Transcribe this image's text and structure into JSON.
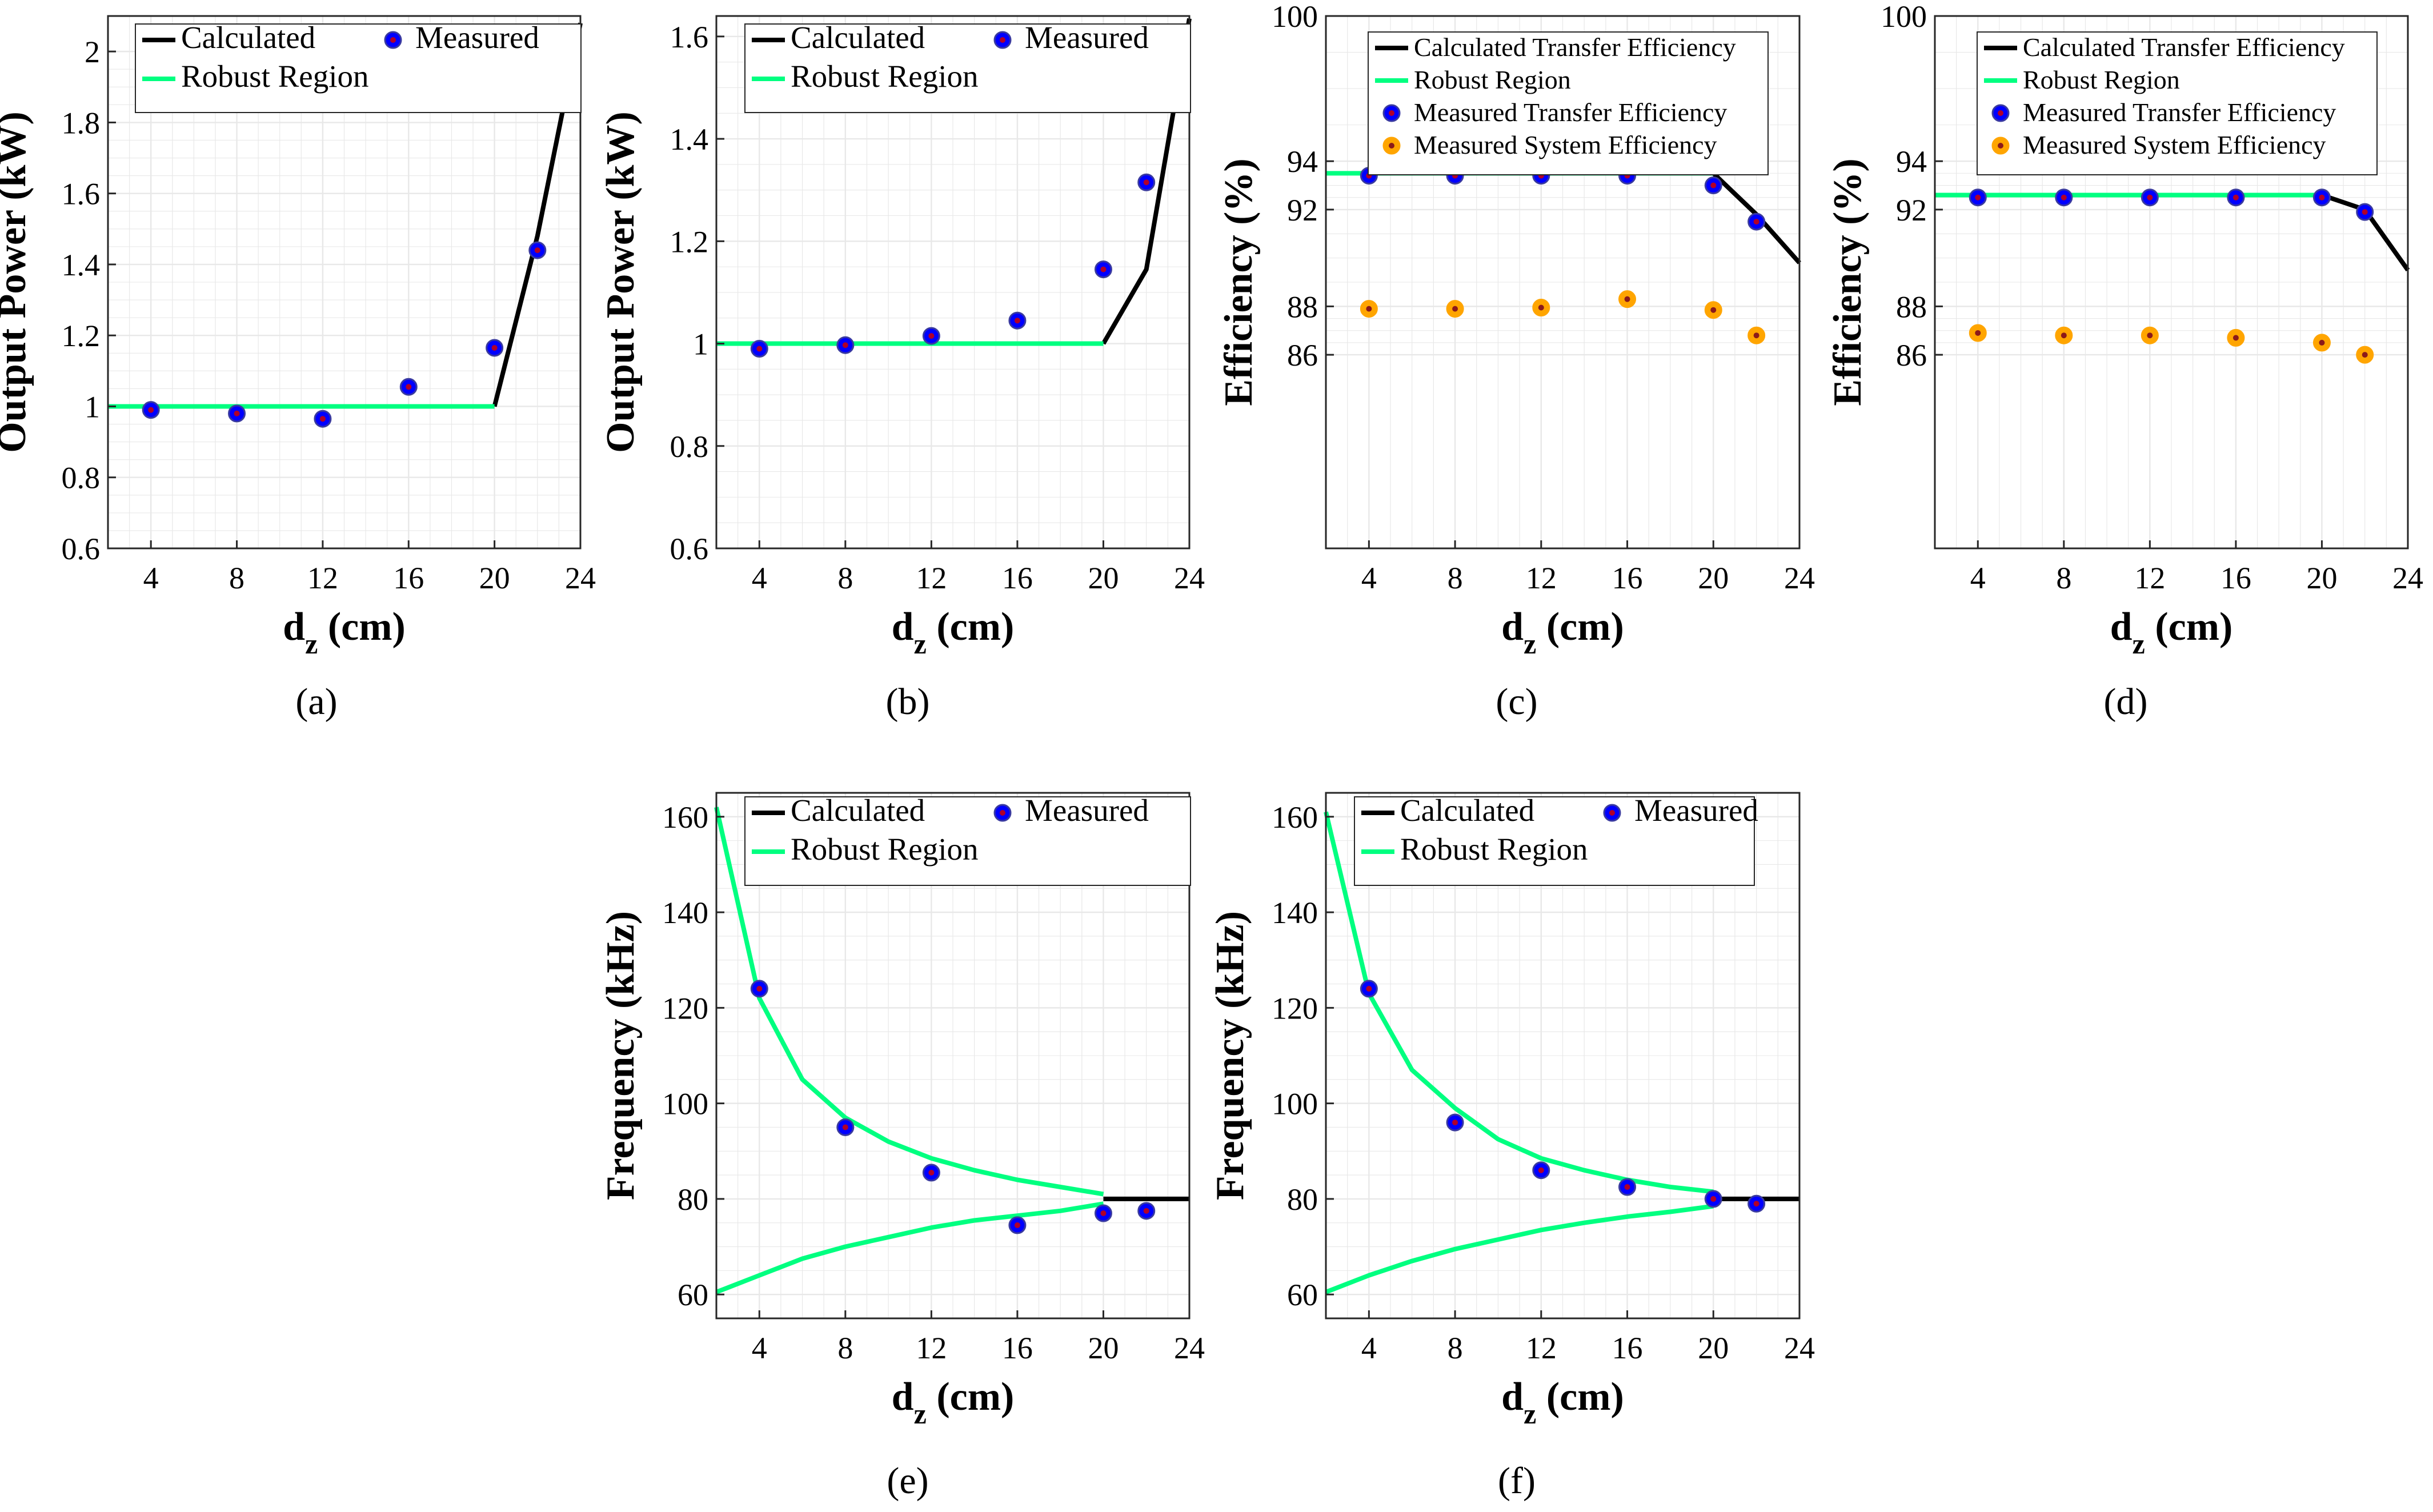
{
  "colors": {
    "calculated": "#000000",
    "robust": "#00ff80",
    "measured_face": "#0000ff",
    "measured_center": "#b0002a",
    "system_face": "#ffa500",
    "system_center": "#8b1a1a",
    "grid": "#e8e8e8",
    "axis": "#262626"
  },
  "chart_data": [
    {
      "id": "a",
      "caption": "(a)",
      "type": "line",
      "xlabel_main": "d",
      "xlabel_sub": "z",
      "xlabel_unit": " (cm)",
      "ylabel": "Output Power (kW)",
      "xlim": [
        2,
        24
      ],
      "ylim": [
        0.6,
        2.1
      ],
      "xticks": [
        4,
        8,
        12,
        16,
        20,
        24
      ],
      "xtick_labels": [
        "4",
        "8",
        "12",
        "16",
        "20",
        "24"
      ],
      "yticks": [
        0.6,
        0.8,
        1,
        1.2,
        1.4,
        1.6,
        1.8,
        2
      ],
      "ytick_labels": [
        "0.6",
        "0.8",
        "1",
        "1.2",
        "1.4",
        "1.6",
        "1.8",
        "2"
      ],
      "grid": true,
      "legend_columns": 2,
      "legend_placement": "top",
      "series": [
        {
          "name": "Calculated",
          "kind": "line",
          "color_key": "calculated",
          "x": [
            20,
            22,
            24
          ],
          "y": [
            1.0,
            1.48,
            2.08
          ]
        },
        {
          "name": "Measured",
          "kind": "marker",
          "color_key": "measured_face",
          "x": [
            4,
            8,
            12,
            16,
            20,
            22
          ],
          "y": [
            0.99,
            0.98,
            0.965,
            1.055,
            1.165,
            1.44
          ]
        },
        {
          "name": "Robust Region",
          "kind": "line",
          "color_key": "robust",
          "x": [
            2,
            20
          ],
          "y": [
            1.0,
            1.0
          ]
        }
      ]
    },
    {
      "id": "b",
      "caption": "(b)",
      "type": "line",
      "xlabel_main": "d",
      "xlabel_sub": "z",
      "xlabel_unit": " (cm)",
      "ylabel": "Output Power (kW)",
      "xlim": [
        2,
        24
      ],
      "ylim": [
        0.6,
        1.64
      ],
      "xticks": [
        4,
        8,
        12,
        16,
        20,
        24
      ],
      "xtick_labels": [
        "4",
        "8",
        "12",
        "16",
        "20",
        "24"
      ],
      "yticks": [
        0.6,
        0.8,
        1,
        1.2,
        1.4,
        1.6
      ],
      "ytick_labels": [
        "0.6",
        "0.8",
        "1",
        "1.2",
        "1.4",
        "1.6"
      ],
      "grid": true,
      "legend_columns": 2,
      "legend_placement": "top",
      "series": [
        {
          "name": "Calculated",
          "kind": "line",
          "color_key": "calculated",
          "x": [
            20,
            22,
            24
          ],
          "y": [
            1.0,
            1.145,
            1.635
          ]
        },
        {
          "name": "Measured",
          "kind": "marker",
          "color_key": "measured_face",
          "x": [
            4,
            8,
            12,
            16,
            20,
            22
          ],
          "y": [
            0.99,
            0.997,
            1.015,
            1.045,
            1.145,
            1.315
          ]
        },
        {
          "name": "Robust Region",
          "kind": "line",
          "color_key": "robust",
          "x": [
            2,
            20
          ],
          "y": [
            1.0,
            1.0
          ]
        }
      ]
    },
    {
      "id": "c",
      "caption": "(c)",
      "type": "line",
      "xlabel_main": "d",
      "xlabel_sub": "z",
      "xlabel_unit": " (cm)",
      "ylabel": "Efficiency (%)",
      "xlim": [
        2,
        24
      ],
      "ylim": [
        78,
        100
      ],
      "xticks": [
        4,
        8,
        12,
        16,
        20,
        24
      ],
      "xtick_labels": [
        "4",
        "8",
        "12",
        "16",
        "20",
        "24"
      ],
      "yticks": [
        86,
        88,
        92,
        94,
        100
      ],
      "ytick_labels": [
        "86",
        "88",
        "92",
        "94",
        "100"
      ],
      "grid": true,
      "legend_columns": 1,
      "legend_placement": "top",
      "series": [
        {
          "name": "Calculated Transfer Efficiency",
          "kind": "line",
          "color_key": "calculated",
          "x": [
            20,
            22,
            24
          ],
          "y": [
            93.5,
            91.8,
            89.8
          ]
        },
        {
          "name": "Robust Region",
          "kind": "line",
          "color_key": "robust",
          "x": [
            2,
            20
          ],
          "y": [
            93.5,
            93.5
          ]
        },
        {
          "name": "Measured Transfer Efficiency",
          "kind": "marker",
          "color_key": "measured_face",
          "x": [
            4,
            8,
            12,
            16,
            20,
            22
          ],
          "y": [
            93.4,
            93.4,
            93.4,
            93.4,
            93.0,
            91.5
          ]
        },
        {
          "name": "Measured System Efficiency",
          "kind": "marker_system",
          "color_key": "system_face",
          "x": [
            4,
            8,
            12,
            16,
            20,
            22
          ],
          "y": [
            87.9,
            87.9,
            87.95,
            88.3,
            87.85,
            86.8
          ]
        }
      ]
    },
    {
      "id": "d",
      "caption": "(d)",
      "type": "line",
      "xlabel_main": "d",
      "xlabel_sub": "z",
      "xlabel_unit": " (cm)",
      "ylabel": "Efficiency (%)",
      "xlim": [
        2,
        24
      ],
      "ylim": [
        78,
        100
      ],
      "xticks": [
        4,
        8,
        12,
        16,
        20,
        24
      ],
      "xtick_labels": [
        "4",
        "8",
        "12",
        "16",
        "20",
        "24"
      ],
      "yticks": [
        86,
        88,
        92,
        94,
        100
      ],
      "ytick_labels": [
        "86",
        "88",
        "92",
        "94",
        "100"
      ],
      "grid": true,
      "legend_columns": 1,
      "legend_placement": "top",
      "series": [
        {
          "name": "Calculated Transfer Efficiency",
          "kind": "line",
          "color_key": "calculated",
          "x": [
            20,
            22,
            24
          ],
          "y": [
            92.6,
            92.0,
            89.5
          ]
        },
        {
          "name": "Robust Region",
          "kind": "line",
          "color_key": "robust",
          "x": [
            2,
            20
          ],
          "y": [
            92.6,
            92.6
          ]
        },
        {
          "name": "Measured Transfer Efficiency",
          "kind": "marker",
          "color_key": "measured_face",
          "x": [
            4,
            8,
            12,
            16,
            20,
            22
          ],
          "y": [
            92.5,
            92.5,
            92.5,
            92.5,
            92.5,
            91.9
          ]
        },
        {
          "name": "Measured System Efficiency",
          "kind": "marker_system",
          "color_key": "system_face",
          "x": [
            4,
            8,
            12,
            16,
            20,
            22
          ],
          "y": [
            86.9,
            86.8,
            86.8,
            86.7,
            86.5,
            86.0
          ]
        }
      ]
    },
    {
      "id": "e",
      "caption": "(e)",
      "type": "line",
      "xlabel_main": "d",
      "xlabel_sub": "z",
      "xlabel_unit": " (cm)",
      "ylabel": "Frequency (kHz)",
      "xlim": [
        2,
        24
      ],
      "ylim": [
        55,
        165
      ],
      "xticks": [
        4,
        8,
        12,
        16,
        20,
        24
      ],
      "xtick_labels": [
        "4",
        "8",
        "12",
        "16",
        "20",
        "24"
      ],
      "yticks": [
        60,
        80,
        100,
        120,
        140,
        160
      ],
      "ytick_labels": [
        "60",
        "80",
        "100",
        "120",
        "140",
        "160"
      ],
      "grid": true,
      "legend_columns": 2,
      "legend_placement": "top",
      "series": [
        {
          "name": "Calculated",
          "kind": "line",
          "color_key": "calculated",
          "x": [
            20,
            22,
            24
          ],
          "y": [
            80,
            80,
            80
          ]
        },
        {
          "name": "Measured",
          "kind": "marker",
          "color_key": "measured_face",
          "x": [
            4,
            8,
            12,
            16,
            20,
            22
          ],
          "y": [
            124,
            95,
            85.5,
            74.5,
            77,
            77.5
          ]
        },
        {
          "name": "Robust Region",
          "kind": "line",
          "color_key": "robust",
          "x": [
            2,
            4,
            6,
            8,
            10,
            12,
            14,
            16,
            18,
            20
          ],
          "y": [
            162,
            122,
            105,
            97,
            92,
            88.5,
            86,
            84,
            82.5,
            81
          ]
        },
        {
          "name": "",
          "kind": "line_nolegend",
          "color_key": "robust",
          "x": [
            2,
            4,
            6,
            8,
            10,
            12,
            14,
            16,
            18,
            20
          ],
          "y": [
            60.5,
            64,
            67.5,
            70,
            72,
            74,
            75.5,
            76.5,
            77.5,
            79
          ]
        }
      ]
    },
    {
      "id": "f",
      "caption": "(f)",
      "type": "line",
      "xlabel_main": "d",
      "xlabel_sub": "z",
      "xlabel_unit": " (cm)",
      "ylabel": "Frequency (kHz)",
      "xlim": [
        2,
        24
      ],
      "ylim": [
        55,
        165
      ],
      "xticks": [
        4,
        8,
        12,
        16,
        20,
        24
      ],
      "xtick_labels": [
        "4",
        "8",
        "12",
        "16",
        "20",
        "24"
      ],
      "yticks": [
        60,
        80,
        100,
        120,
        140,
        160
      ],
      "ytick_labels": [
        "60",
        "80",
        "100",
        "120",
        "140",
        "160"
      ],
      "grid": true,
      "legend_columns": 2,
      "legend_placement": "top",
      "series": [
        {
          "name": "Calculated",
          "kind": "line",
          "color_key": "calculated",
          "x": [
            20,
            22,
            24
          ],
          "y": [
            80,
            80,
            80
          ]
        },
        {
          "name": "Measured",
          "kind": "marker",
          "color_key": "measured_face",
          "x": [
            4,
            8,
            12,
            16,
            20,
            22
          ],
          "y": [
            124,
            96,
            86,
            82.5,
            80,
            79
          ]
        },
        {
          "name": "Robust Region",
          "kind": "line",
          "color_key": "robust",
          "x": [
            2,
            4,
            6,
            8,
            10,
            12,
            14,
            16,
            18,
            20
          ],
          "y": [
            161,
            123,
            107,
            99,
            92.5,
            88.5,
            86,
            84,
            82.5,
            81.5
          ]
        },
        {
          "name": "",
          "kind": "line_nolegend",
          "color_key": "robust",
          "x": [
            2,
            4,
            6,
            8,
            10,
            12,
            14,
            16,
            18,
            20
          ],
          "y": [
            60.5,
            64,
            67,
            69.5,
            71.5,
            73.5,
            75,
            76.3,
            77.3,
            78.5
          ]
        }
      ]
    }
  ]
}
